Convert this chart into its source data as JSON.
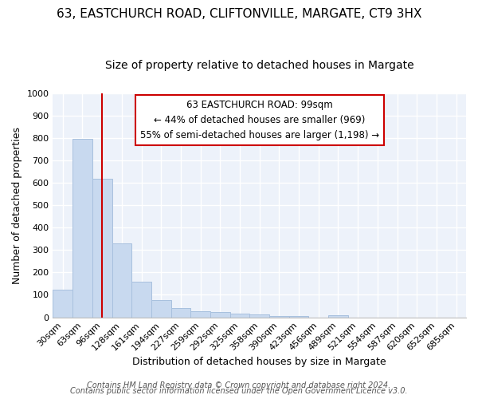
{
  "title1": "63, EASTCHURCH ROAD, CLIFTONVILLE, MARGATE, CT9 3HX",
  "title2": "Size of property relative to detached houses in Margate",
  "xlabel": "Distribution of detached houses by size in Margate",
  "ylabel": "Number of detached properties",
  "categories": [
    "30sqm",
    "63sqm",
    "96sqm",
    "128sqm",
    "161sqm",
    "194sqm",
    "227sqm",
    "259sqm",
    "292sqm",
    "325sqm",
    "358sqm",
    "390sqm",
    "423sqm",
    "456sqm",
    "489sqm",
    "521sqm",
    "554sqm",
    "587sqm",
    "620sqm",
    "652sqm",
    "685sqm"
  ],
  "values": [
    122,
    795,
    617,
    330,
    160,
    78,
    40,
    27,
    24,
    17,
    12,
    6,
    6,
    0,
    8,
    0,
    0,
    0,
    0,
    0,
    0
  ],
  "bar_color": "#c8d9ef",
  "bar_edge_color": "#a8c0de",
  "vline_color": "#cc0000",
  "vline_x_idx": 2,
  "annotation_text": "63 EASTCHURCH ROAD: 99sqm\n← 44% of detached houses are smaller (969)\n55% of semi-detached houses are larger (1,198) →",
  "annotation_box_color": "#ffffff",
  "annotation_box_edge": "#cc0000",
  "ylim": [
    0,
    1000
  ],
  "yticks": [
    0,
    100,
    200,
    300,
    400,
    500,
    600,
    700,
    800,
    900,
    1000
  ],
  "footer1": "Contains HM Land Registry data © Crown copyright and database right 2024.",
  "footer2": "Contains public sector information licensed under the Open Government Licence v3.0.",
  "fig_bg_color": "#ffffff",
  "plot_bg_color": "#edf2fa",
  "grid_color": "#ffffff",
  "title1_fontsize": 11,
  "title2_fontsize": 10,
  "tick_fontsize": 8,
  "ylabel_fontsize": 9,
  "xlabel_fontsize": 9,
  "footer_fontsize": 7,
  "annotation_fontsize": 8.5
}
